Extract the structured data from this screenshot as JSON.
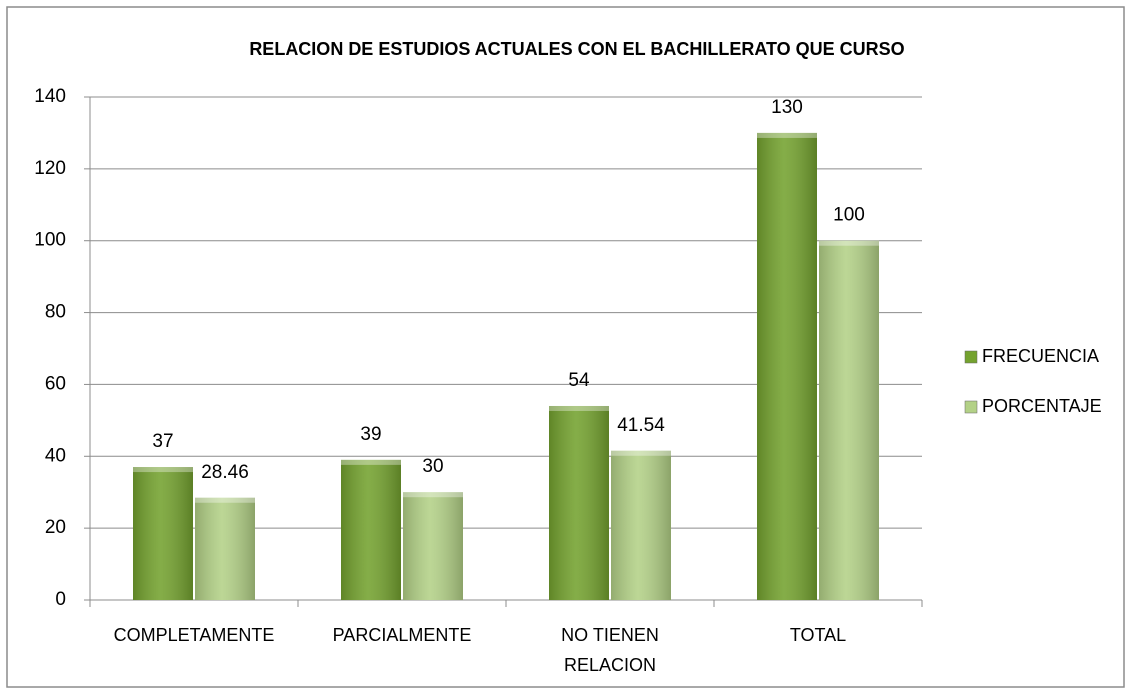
{
  "chart_data": {
    "type": "bar",
    "title": "RELACION DE ESTUDIOS ACTUALES CON EL BACHILLERATO QUE CURSO",
    "categories": [
      "COMPLETAMENTE",
      "PARCIALMENTE",
      "NO TIENEN RELACION",
      "TOTAL"
    ],
    "series": [
      {
        "name": "FRECUENCIA",
        "color": "#74a22f",
        "values": [
          37,
          39,
          54,
          130
        ]
      },
      {
        "name": "PORCENTAJE",
        "color": "#b3d187",
        "values": [
          28.46,
          30,
          41.54,
          100
        ]
      }
    ],
    "ylim": [
      0,
      140
    ],
    "yticks": [
      0,
      20,
      40,
      60,
      80,
      100,
      120,
      140
    ],
    "grid": true,
    "legend": "right"
  }
}
